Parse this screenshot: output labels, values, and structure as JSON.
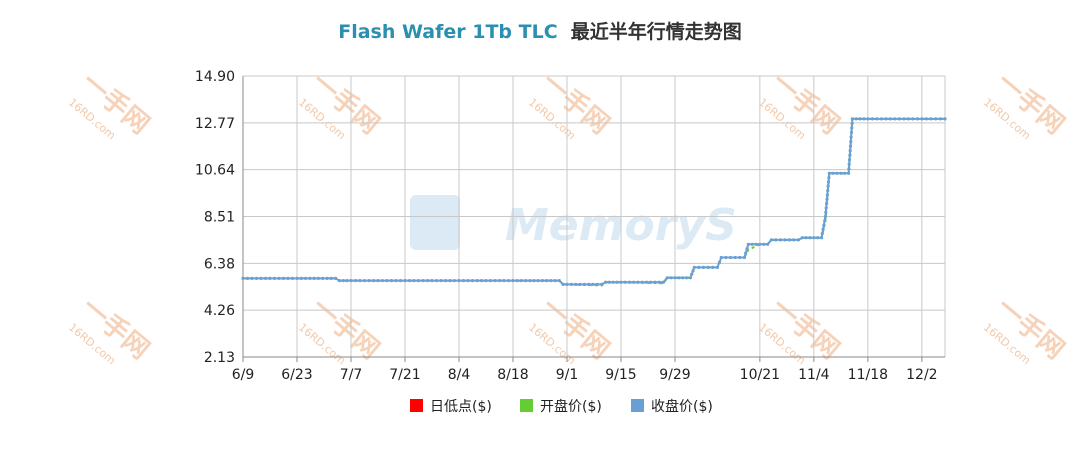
{
  "colors": {
    "title_main": "#2a8fb0",
    "low_point": "#ff0000",
    "open_price": "#66cc33",
    "close_price": "#6a9fd4",
    "watermark": "#f5c7a8"
  },
  "watermark": {
    "logo_text": "一手网",
    "site_text": "16RD.com",
    "center_logo_text": "MemoryS"
  },
  "chart_data": {
    "type": "line",
    "title": "Flash Wafer 1Tb TLC",
    "subtitle": "最近半年行情走势图",
    "xlabel": "",
    "ylabel": "",
    "x_tick_labels": [
      "6/9",
      "6/23",
      "7/7",
      "7/21",
      "8/4",
      "8/18",
      "9/1",
      "9/15",
      "9/29",
      "10/21",
      "11/4",
      "11/18",
      "12/2"
    ],
    "y_tick_labels": [
      "14.90",
      "12.77",
      "10.64",
      "8.51",
      "6.38",
      "4.26",
      "2.13"
    ],
    "ylim": [
      2.13,
      14.9
    ],
    "grid": true,
    "legend_position": "bottom",
    "legend": [
      "日低点($)",
      "开盘价($)",
      "收盘价($)"
    ],
    "x": [
      "6/9",
      "6/23",
      "7/3",
      "7/4",
      "7/7",
      "7/21",
      "8/4",
      "8/18",
      "8/30",
      "8/31",
      "9/1",
      "9/10",
      "9/11",
      "9/15",
      "9/26",
      "9/27",
      "9/29",
      "10/3",
      "10/4",
      "10/10",
      "10/11",
      "10/17",
      "10/18",
      "10/21",
      "10/23",
      "10/24",
      "10/31",
      "11/1",
      "11/4",
      "11/6",
      "11/7",
      "11/8",
      "11/10",
      "11/13",
      "11/14",
      "11/18",
      "12/2",
      "12/8"
    ],
    "series": [
      {
        "name": "收盘价($)",
        "values": [
          5.7,
          5.7,
          5.7,
          5.6,
          5.6,
          5.6,
          5.6,
          5.6,
          5.6,
          5.43,
          5.43,
          5.43,
          5.53,
          5.53,
          5.53,
          5.73,
          5.73,
          5.73,
          6.2,
          6.2,
          6.65,
          6.65,
          7.25,
          7.25,
          7.25,
          7.45,
          7.45,
          7.55,
          7.55,
          7.55,
          8.51,
          10.48,
          10.48,
          10.48,
          12.95,
          12.95,
          12.95,
          12.95
        ]
      },
      {
        "name": "开盘价($)",
        "values": [
          5.7,
          5.7,
          5.7,
          5.6,
          5.6,
          5.6,
          5.6,
          5.6,
          5.6,
          5.43,
          5.43,
          5.38,
          5.53,
          5.53,
          5.48,
          5.73,
          5.73,
          5.73,
          6.2,
          6.2,
          6.65,
          6.65,
          7.0,
          7.25,
          7.25,
          7.45,
          7.45,
          7.55,
          7.55,
          7.55,
          8.3,
          10.48,
          10.48,
          10.48,
          12.95,
          12.95,
          12.95,
          12.95
        ]
      }
    ]
  }
}
